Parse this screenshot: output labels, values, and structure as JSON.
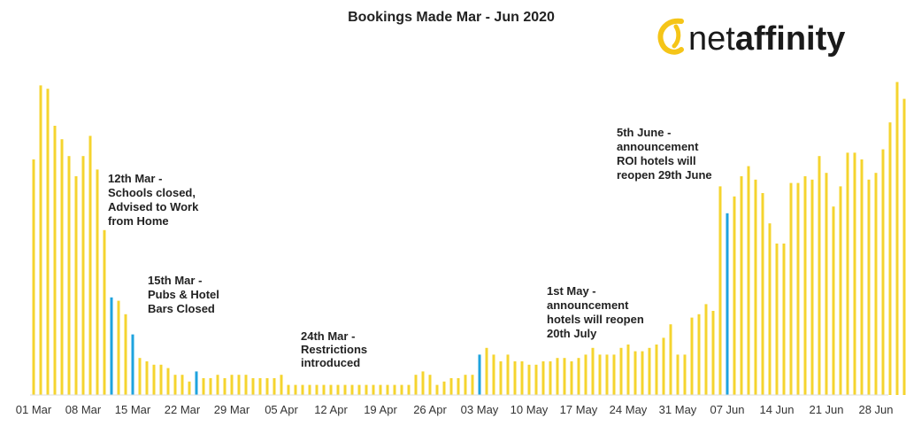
{
  "chart_data": {
    "type": "bar",
    "title": "Bookings Made Mar - Jun 2020",
    "xlabel": "",
    "ylabel": "",
    "ylim": [
      0,
      100
    ],
    "grid": false,
    "x_tick_labels": [
      "01 Mar",
      "08 Mar",
      "15 Mar",
      "22 Mar",
      "29 Mar",
      "05 Apr",
      "12 Apr",
      "19 Apr",
      "26 Apr",
      "03 May",
      "10 May",
      "17 May",
      "24 May",
      "31 May",
      "07 Jun",
      "14 Jun",
      "21 Jun",
      "28 Jun"
    ],
    "x_tick_day_index": [
      0,
      7,
      14,
      21,
      28,
      35,
      42,
      49,
      56,
      63,
      70,
      77,
      84,
      91,
      98,
      105,
      112,
      119
    ],
    "start_label": "01 Mar",
    "values": [
      70,
      92,
      91,
      80,
      76,
      71,
      65,
      71,
      77,
      67,
      49,
      29,
      28,
      24,
      18,
      11,
      10,
      9,
      9,
      8,
      6,
      6,
      4,
      7,
      5,
      5,
      6,
      5,
      6,
      6,
      6,
      5,
      5,
      5,
      5,
      6,
      3,
      3,
      3,
      3,
      3,
      3,
      3,
      3,
      3,
      3,
      3,
      3,
      3,
      3,
      3,
      3,
      3,
      3,
      6,
      7,
      6,
      3,
      4,
      5,
      5,
      6,
      6,
      12,
      14,
      12,
      10,
      12,
      10,
      10,
      9,
      9,
      10,
      10,
      11,
      11,
      10,
      11,
      12,
      14,
      12,
      12,
      12,
      14,
      15,
      13,
      13,
      14,
      15,
      17,
      21,
      12,
      12,
      23,
      24,
      27,
      25,
      62,
      54,
      59,
      65,
      68,
      64,
      60,
      51,
      45,
      45,
      63,
      63,
      65,
      64,
      71,
      66,
      56,
      62,
      72,
      72,
      70,
      64,
      66,
      73,
      81,
      93,
      88
    ],
    "highlight_day_index": [
      11,
      14,
      23,
      63,
      98
    ],
    "colors": {
      "default_bar": "#F5D42F",
      "highlight_bar": "#1EA3DE"
    },
    "annotations": [
      {
        "text": [
          "12th Mar -",
          "Schools closed,",
          "Advised to Work",
          "from Home"
        ]
      },
      {
        "text": [
          "15th Mar -",
          "Pubs & Hotel",
          "Bars Closed"
        ]
      },
      {
        "text": [
          "24th Mar -",
          "Restrictions",
          "introduced"
        ]
      },
      {
        "text": [
          "1st May -",
          "announcement",
          "hotels will reopen",
          "20th July"
        ]
      },
      {
        "text": [
          "5th June -",
          "announcement",
          "ROI hotels will",
          "reopen 29th June"
        ]
      }
    ]
  },
  "logo": {
    "text_regular": "net",
    "text_bold": "affinity",
    "colors": {
      "mark": "#F5C518",
      "text": "#1a1a1a"
    }
  }
}
